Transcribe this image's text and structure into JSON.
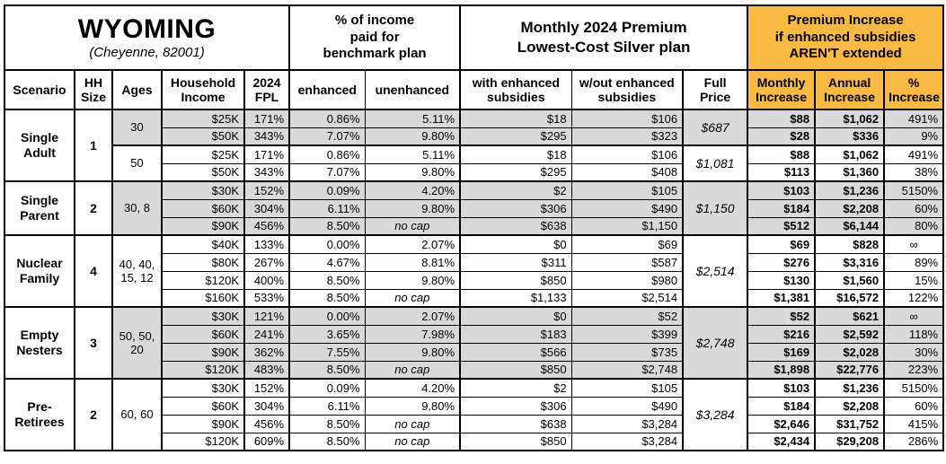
{
  "header": {
    "state": "WYOMING",
    "location": "(Cheyenne, 82001)",
    "benchmark_section": "% of income\npaid for\nbenchmark plan",
    "premium_section": "Monthly 2024 Premium\nLowest-Cost Silver plan",
    "increase_section": "Premium Increase\nif enhanced subsidies\nAREN'T extended",
    "columns": {
      "scenario": "Scenario",
      "hh_size": "HH\nSize",
      "ages": "Ages",
      "household_income": "Household\nIncome",
      "fpl": "2024\nFPL",
      "enhanced": "enhanced",
      "unenhanced": "unenhanced",
      "with_subsidies": "with enhanced\nsubsidies",
      "without_subsidies": "w/out enhanced\nsubsidies",
      "full_price": "Full\nPrice",
      "monthly_increase": "Monthly\nIncrease",
      "annual_increase": "Annual\nIncrease",
      "pct_increase": "%\nIncrease"
    }
  },
  "colors": {
    "accent_orange": "#F9B942",
    "shaded_gray": "#D9D9D9"
  },
  "groups": [
    {
      "scenario": "Single\nAdult",
      "hh_size": "1",
      "blocks": [
        {
          "ages": "30",
          "shaded": true,
          "full_price": "$687",
          "rows": [
            [
              "$25K",
              "171%",
              "0.86%",
              "5.11%",
              "$18",
              "$106",
              "$88",
              "$1,062",
              "491%"
            ],
            [
              "$50K",
              "343%",
              "7.07%",
              "9.80%",
              "$295",
              "$323",
              "$28",
              "$336",
              "9%"
            ]
          ]
        },
        {
          "ages": "50",
          "shaded": false,
          "full_price": "$1,081",
          "rows": [
            [
              "$25K",
              "171%",
              "0.86%",
              "5.11%",
              "$18",
              "$106",
              "$88",
              "$1,062",
              "491%"
            ],
            [
              "$50K",
              "343%",
              "7.07%",
              "9.80%",
              "$295",
              "$408",
              "$113",
              "$1,360",
              "38%"
            ]
          ]
        }
      ]
    },
    {
      "scenario": "Single\nParent",
      "hh_size": "2",
      "blocks": [
        {
          "ages": "30, 8",
          "shaded": true,
          "full_price": "$1,150",
          "rows": [
            [
              "$30K",
              "152%",
              "0.09%",
              "4.20%",
              "$2",
              "$105",
              "$103",
              "$1,236",
              "5150%"
            ],
            [
              "$60K",
              "304%",
              "6.11%",
              "9.80%",
              "$306",
              "$490",
              "$184",
              "$2,208",
              "60%"
            ],
            [
              "$90K",
              "456%",
              "8.50%",
              "no cap",
              "$638",
              "$1,150",
              "$512",
              "$6,144",
              "80%"
            ]
          ]
        }
      ]
    },
    {
      "scenario": "Nuclear\nFamily",
      "hh_size": "4",
      "blocks": [
        {
          "ages": "40, 40,\n15, 12",
          "shaded": false,
          "full_price": "$2,514",
          "rows": [
            [
              "$40K",
              "133%",
              "0.00%",
              "2.07%",
              "$0",
              "$69",
              "$69",
              "$828",
              "∞"
            ],
            [
              "$80K",
              "267%",
              "4.67%",
              "8.81%",
              "$311",
              "$587",
              "$276",
              "$3,316",
              "89%"
            ],
            [
              "$120K",
              "400%",
              "8.50%",
              "9.80%",
              "$850",
              "$980",
              "$130",
              "$1,560",
              "15%"
            ],
            [
              "$160K",
              "533%",
              "8.50%",
              "no cap",
              "$1,133",
              "$2,514",
              "$1,381",
              "$16,572",
              "122%"
            ]
          ]
        }
      ]
    },
    {
      "scenario": "Empty\nNesters",
      "hh_size": "3",
      "blocks": [
        {
          "ages": "50, 50,\n20",
          "shaded": true,
          "full_price": "$2,748",
          "rows": [
            [
              "$30K",
              "121%",
              "0.00%",
              "2.07%",
              "$0",
              "$52",
              "$52",
              "$621",
              "∞"
            ],
            [
              "$60K",
              "241%",
              "3.65%",
              "7.98%",
              "$183",
              "$399",
              "$216",
              "$2,592",
              "118%"
            ],
            [
              "$90K",
              "362%",
              "7.55%",
              "9.80%",
              "$566",
              "$735",
              "$169",
              "$2,028",
              "30%"
            ],
            [
              "$120K",
              "483%",
              "8.50%",
              "no cap",
              "$850",
              "$2,748",
              "$1,898",
              "$22,776",
              "223%"
            ]
          ]
        }
      ]
    },
    {
      "scenario": "Pre-\nRetirees",
      "hh_size": "2",
      "blocks": [
        {
          "ages": "60, 60",
          "shaded": false,
          "full_price": "$3,284",
          "rows": [
            [
              "$30K",
              "152%",
              "0.09%",
              "4.20%",
              "$2",
              "$105",
              "$103",
              "$1,236",
              "5150%"
            ],
            [
              "$60K",
              "304%",
              "6.11%",
              "9.80%",
              "$306",
              "$490",
              "$184",
              "$2,208",
              "60%"
            ],
            [
              "$90K",
              "456%",
              "8.50%",
              "no cap",
              "$638",
              "$3,284",
              "$2,646",
              "$31,752",
              "415%"
            ],
            [
              "$120K",
              "609%",
              "8.50%",
              "no cap",
              "$850",
              "$3,284",
              "$2,434",
              "$29,208",
              "286%"
            ]
          ]
        }
      ]
    }
  ]
}
